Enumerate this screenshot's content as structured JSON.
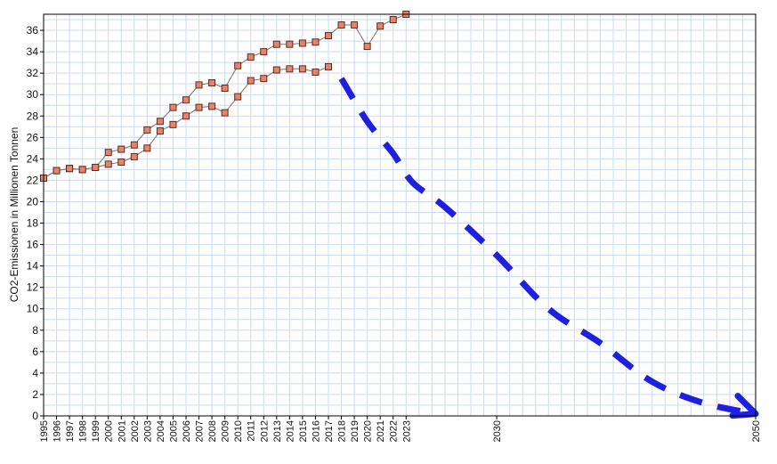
{
  "chart_data": {
    "type": "line",
    "title": "",
    "xlabel": "",
    "ylabel": "CO2-Emissionen in Millionen Tonnen",
    "xlim": [
      1995,
      2050
    ],
    "ylim": [
      0,
      37.5
    ],
    "grid": true,
    "y_ticks": [
      0,
      2,
      4,
      6,
      8,
      10,
      12,
      14,
      16,
      18,
      20,
      22,
      24,
      26,
      28,
      30,
      32,
      34,
      36
    ],
    "x_ticks": [
      1995,
      1996,
      1997,
      1998,
      1999,
      2000,
      2001,
      2002,
      2003,
      2004,
      2005,
      2006,
      2007,
      2008,
      2009,
      2010,
      2011,
      2012,
      2013,
      2014,
      2015,
      2016,
      2017,
      2018,
      2019,
      2020,
      2021,
      2022,
      2023,
      2030,
      2050
    ],
    "series": [
      {
        "kind": "line-markers",
        "x": [
          1995,
          1996,
          1997,
          1998,
          1999,
          2000,
          2001,
          2002,
          2003,
          2004,
          2005,
          2006,
          2007,
          2008,
          2009,
          2010,
          2011,
          2012,
          2013,
          2014,
          2015,
          2016,
          2017,
          2018,
          2019,
          2020,
          2021,
          2022,
          2023
        ],
        "values": [
          22.2,
          22.9,
          23.1,
          23.0,
          23.2,
          24.6,
          24.9,
          25.3,
          26.7,
          27.5,
          28.8,
          29.5,
          30.9,
          31.1,
          30.6,
          32.7,
          33.5,
          34.0,
          34.7,
          34.7,
          34.8,
          34.9,
          35.5,
          36.5,
          36.5,
          34.5,
          36.4,
          37.0,
          37.5
        ]
      },
      {
        "kind": "line-markers",
        "x": [
          1995,
          1996,
          1997,
          1998,
          1999,
          2000,
          2001,
          2002,
          2003,
          2004,
          2005,
          2006,
          2007,
          2008,
          2009,
          2010,
          2011,
          2012,
          2013,
          2014,
          2015,
          2016,
          2017
        ],
        "values": [
          22.2,
          22.9,
          23.1,
          23.0,
          23.2,
          23.5,
          23.7,
          24.2,
          25.0,
          26.6,
          27.2,
          28.0,
          28.8,
          28.9,
          28.3,
          29.8,
          31.3,
          31.5,
          32.3,
          32.4,
          32.4,
          32.1,
          32.6
        ]
      },
      {
        "kind": "dashed-arrow",
        "x": [
          2018,
          2020,
          2022,
          2023.5,
          2026,
          2030,
          2034,
          2038,
          2042,
          2046,
          2050
        ],
        "values": [
          31.5,
          27.5,
          24.5,
          21.8,
          19.5,
          15.0,
          10.0,
          6.8,
          3.2,
          1.2,
          0.2
        ]
      }
    ],
    "colors": {
      "grid": "#c9dcef",
      "axis": "#000000",
      "line": "#8a6a62",
      "marker_fill": "#e8836a",
      "marker_stroke": "#5a2d1c",
      "projection": "#1f1fe0"
    }
  }
}
